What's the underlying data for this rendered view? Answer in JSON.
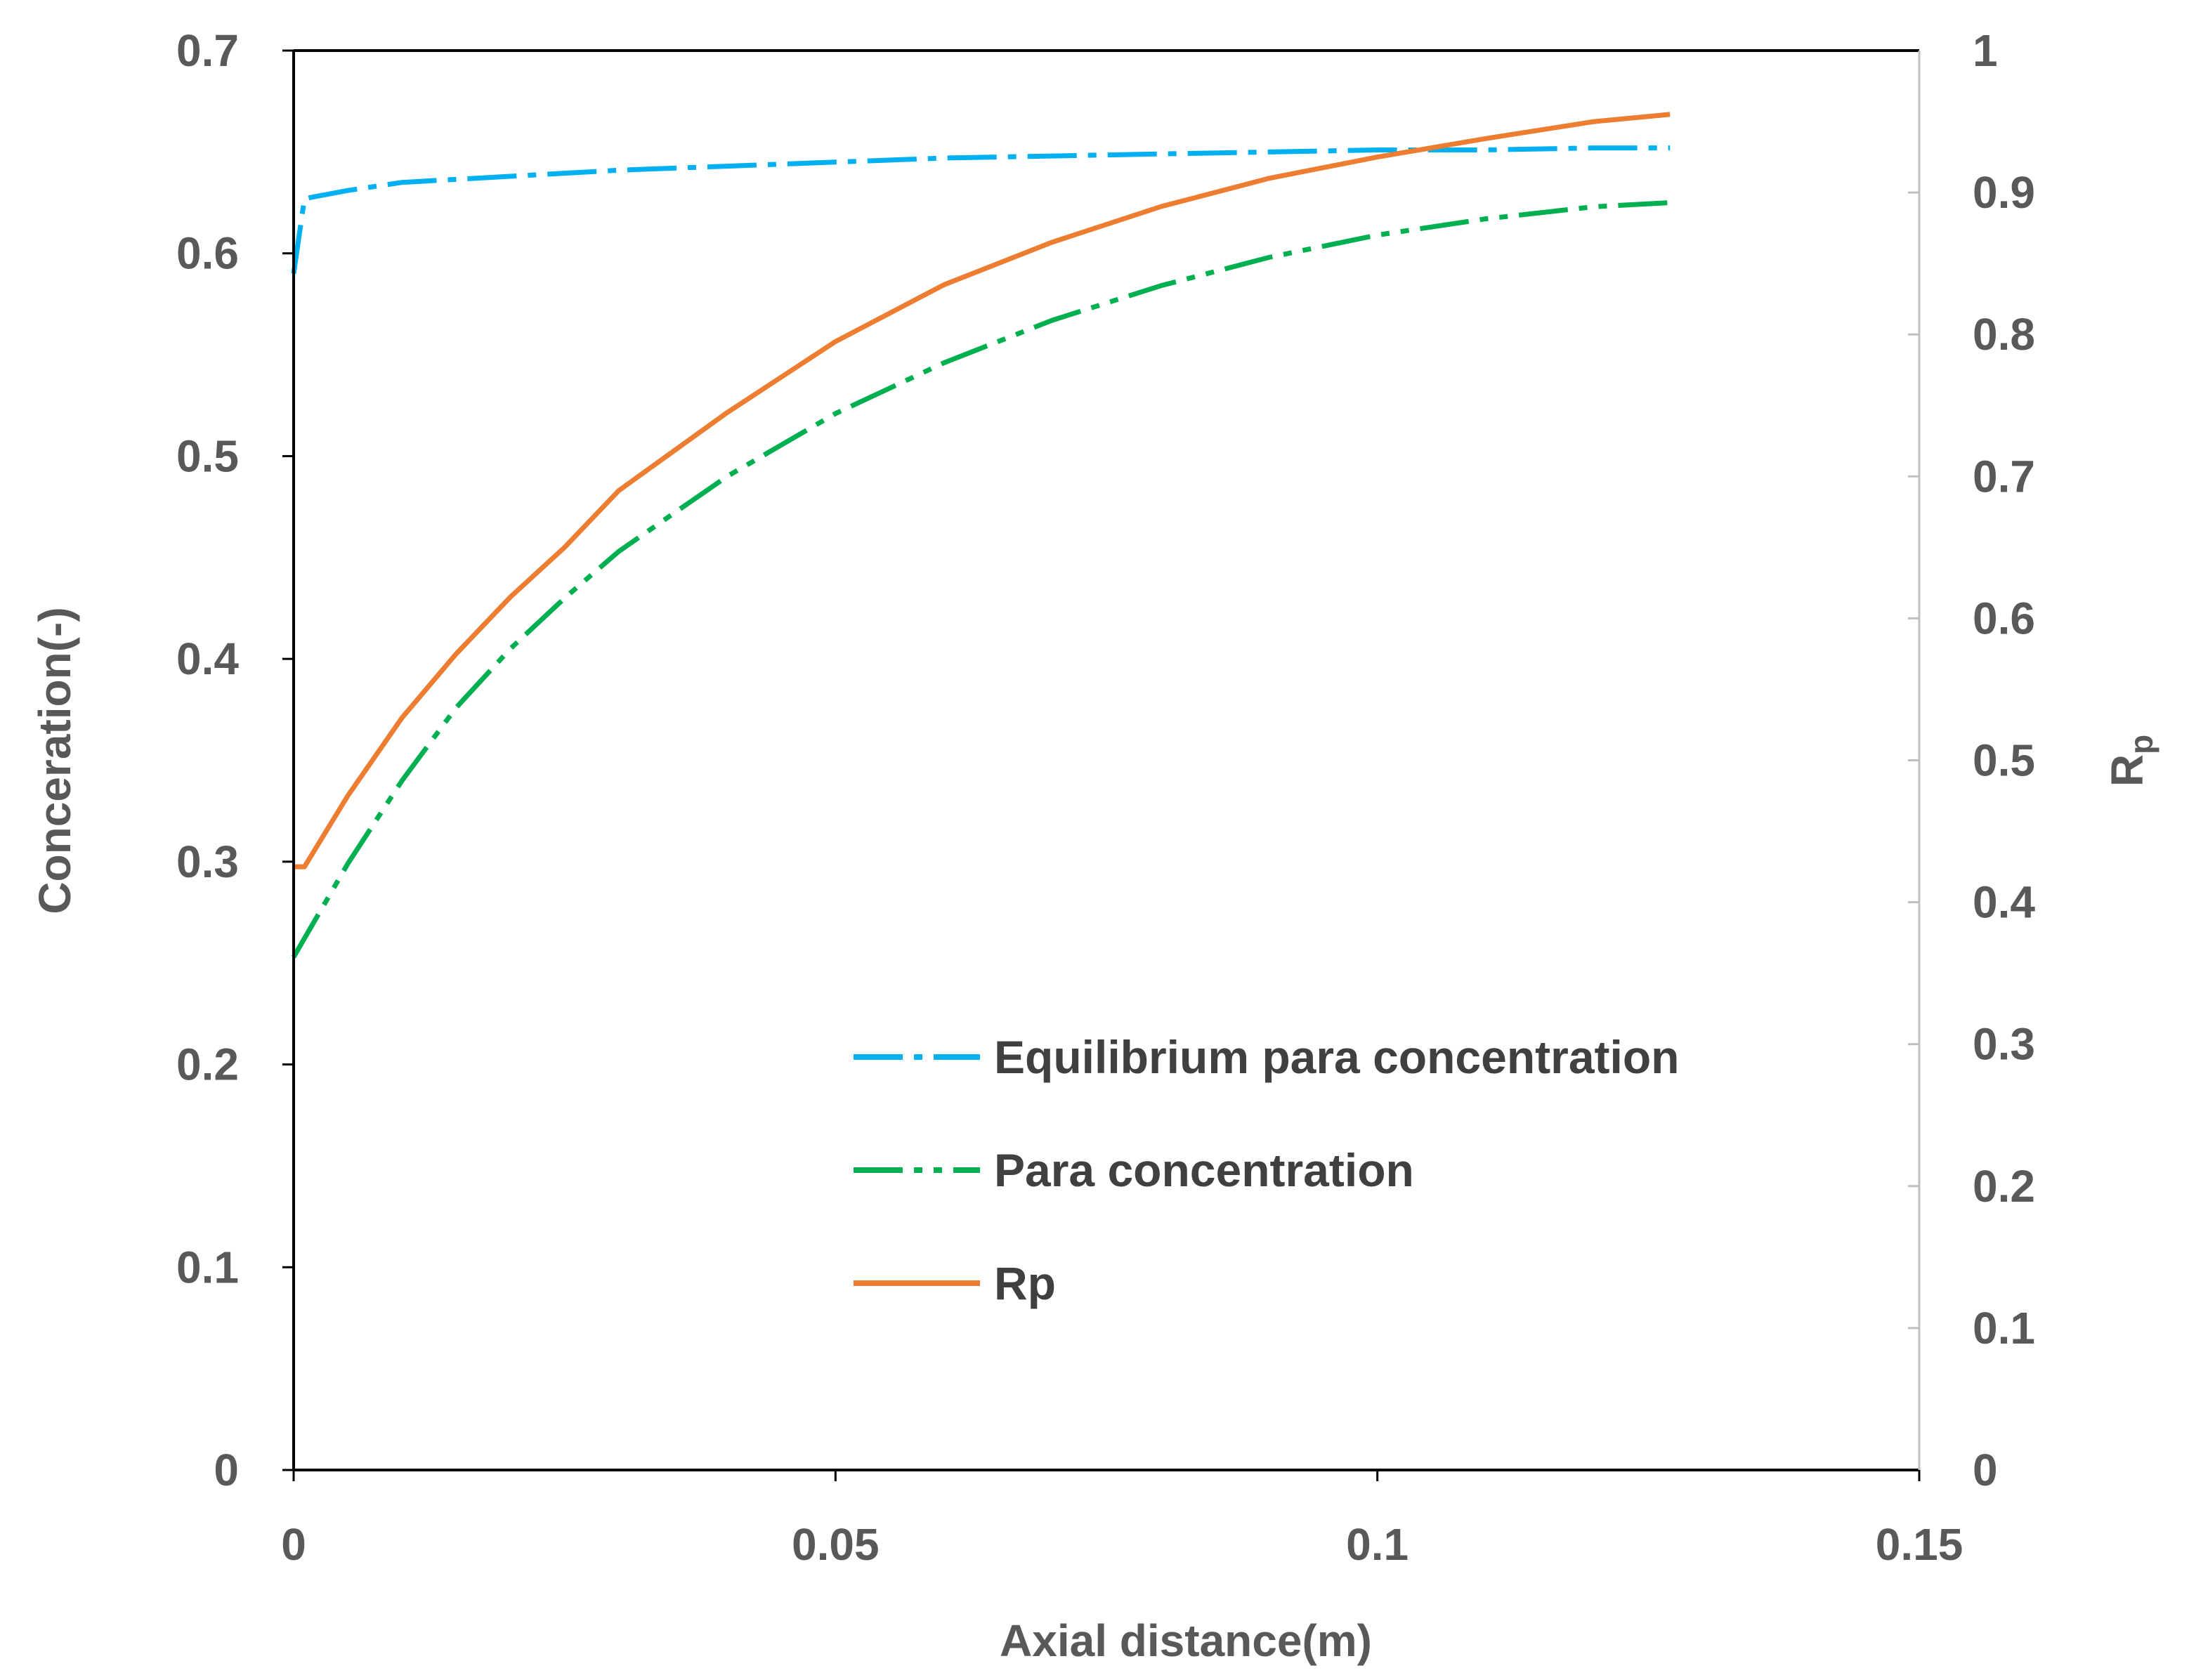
{
  "chart_data": {
    "type": "line",
    "xlabel": "Axial distance(m)",
    "ylabel": "Conceration(-)",
    "y2label": "R",
    "y2label_sub": "p",
    "xlim": [
      0,
      0.15
    ],
    "ylim": [
      0,
      0.7
    ],
    "y2lim": [
      0,
      1
    ],
    "xticks": [
      0,
      0.05,
      0.1,
      0.15
    ],
    "yticks": [
      0,
      0.1,
      0.2,
      0.3,
      0.4,
      0.5,
      0.6,
      0.7
    ],
    "y2ticks": [
      0,
      0.1,
      0.2,
      0.3,
      0.4,
      0.5,
      0.6,
      0.7,
      0.8,
      0.9,
      1
    ],
    "xtick_labels": [
      "0",
      "0.05",
      "0.1",
      "0.15"
    ],
    "ytick_labels": [
      "0",
      "0.1",
      "0.2",
      "0.3",
      "0.4",
      "0.5",
      "0.6",
      "0.7"
    ],
    "y2tick_labels": [
      "0",
      "0.1",
      "0.2",
      "0.3",
      "0.4",
      "0.5",
      "0.6",
      "0.7",
      "0.8",
      "0.9",
      "1"
    ],
    "legend_position": "lower-right",
    "series": [
      {
        "name": "Equilibrium para concentration",
        "axis": "left",
        "style": "dash-dot",
        "color": "#00B0F0",
        "x": [
          0,
          0.001,
          0.005,
          0.01,
          0.02,
          0.03,
          0.04,
          0.05,
          0.06,
          0.07,
          0.08,
          0.09,
          0.1,
          0.11,
          0.12,
          0.127
        ],
        "y": [
          0.59,
          0.627,
          0.631,
          0.635,
          0.638,
          0.641,
          0.643,
          0.645,
          0.647,
          0.648,
          0.649,
          0.65,
          0.651,
          0.651,
          0.652,
          0.652
        ]
      },
      {
        "name": "Para concentration",
        "axis": "left",
        "style": "dash-dot-dot",
        "color": "#00B050",
        "x": [
          0,
          0.005,
          0.01,
          0.015,
          0.02,
          0.025,
          0.03,
          0.04,
          0.05,
          0.06,
          0.07,
          0.08,
          0.09,
          0.1,
          0.11,
          0.12,
          0.127
        ],
        "y": [
          0.253,
          0.299,
          0.34,
          0.376,
          0.405,
          0.43,
          0.453,
          0.49,
          0.521,
          0.546,
          0.567,
          0.584,
          0.598,
          0.609,
          0.617,
          0.623,
          0.625
        ]
      },
      {
        "name": "Rp",
        "axis": "right",
        "style": "solid",
        "color": "#ED7D31",
        "x": [
          0,
          0.001,
          0.005,
          0.01,
          0.015,
          0.02,
          0.025,
          0.03,
          0.04,
          0.05,
          0.06,
          0.07,
          0.08,
          0.09,
          0.1,
          0.11,
          0.12,
          0.127
        ],
        "y": [
          0.425,
          0.425,
          0.475,
          0.53,
          0.575,
          0.615,
          0.65,
          0.69,
          0.745,
          0.795,
          0.835,
          0.865,
          0.89,
          0.91,
          0.925,
          0.938,
          0.95,
          0.955
        ]
      }
    ]
  }
}
